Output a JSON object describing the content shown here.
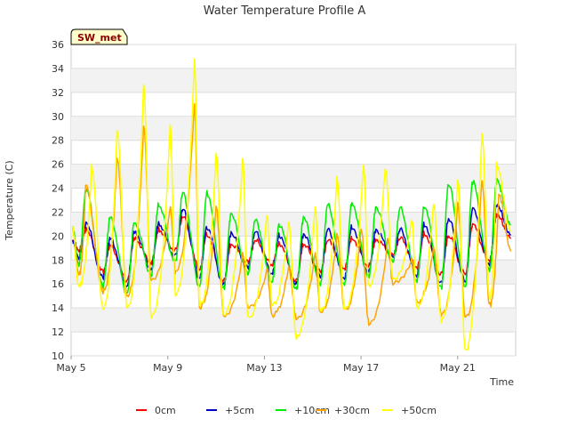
{
  "chart_data": {
    "type": "line",
    "title": "Water Temperature Profile A",
    "xlabel": "Time",
    "ylabel": "Temperature (C)",
    "site_label": "SW_met",
    "ylim": [
      10,
      36
    ],
    "yticks": [
      10,
      12,
      14,
      16,
      18,
      20,
      22,
      24,
      26,
      28,
      30,
      32,
      34,
      36
    ],
    "xlim_days": [
      5,
      23.4
    ],
    "xticks": [
      {
        "day": 5,
        "label": "May 5"
      },
      {
        "day": 9,
        "label": "May 9"
      },
      {
        "day": 13,
        "label": "May 13"
      },
      {
        "day": 17,
        "label": "May 17"
      },
      {
        "day": 21,
        "label": "May 21"
      }
    ],
    "grid": true,
    "legend_position": "bottom",
    "series": [
      {
        "name": "0cm",
        "color": "#ff0000",
        "min": [
          18.8,
          17.0,
          16.3,
          17.8,
          18.8,
          17.2,
          16.2,
          17.8,
          17.6,
          16.2,
          17.0,
          17.3,
          17.5,
          18.4,
          17.4,
          16.8,
          16.8,
          17.9
        ],
        "max": [
          20.5,
          19.2,
          19.8,
          20.5,
          21.6,
          20.2,
          19.3,
          19.6,
          19.4,
          19.3,
          19.6,
          19.8,
          19.7,
          19.8,
          20.2,
          20.0,
          20.9,
          21.8
        ]
      },
      {
        "name": "+5cm",
        "color": "#0000cc",
        "min": [
          18.2,
          16.5,
          15.8,
          17.3,
          18.3,
          16.5,
          15.9,
          17.3,
          16.9,
          15.9,
          16.6,
          16.5,
          17.0,
          18.2,
          16.7,
          16.0,
          16.2,
          17.6
        ],
        "max": [
          21.0,
          19.8,
          20.4,
          21.0,
          22.2,
          20.8,
          20.2,
          20.3,
          20.1,
          20.1,
          20.5,
          20.8,
          20.5,
          20.5,
          21.0,
          21.4,
          22.2,
          22.6
        ]
      },
      {
        "name": "+10cm",
        "color": "#00ee00",
        "min": [
          17.6,
          15.8,
          15.2,
          16.8,
          17.8,
          15.8,
          15.6,
          16.8,
          16.2,
          15.5,
          16.0,
          16.0,
          16.6,
          17.8,
          16.3,
          15.6,
          15.8,
          17.2
        ],
        "max": [
          23.9,
          21.6,
          21.2,
          22.6,
          23.6,
          23.6,
          21.8,
          21.3,
          21.0,
          21.5,
          22.6,
          22.8,
          22.4,
          22.3,
          22.5,
          24.3,
          24.5,
          24.6
        ]
      },
      {
        "name": "+30cm",
        "color": "#ffa500",
        "min": [
          16.8,
          15.4,
          15.0,
          16.2,
          17.0,
          14.0,
          13.4,
          14.0,
          13.4,
          13.2,
          13.6,
          13.8,
          12.8,
          16.0,
          14.5,
          13.5,
          13.2,
          14.2
        ],
        "max": [
          24.4,
          26.5,
          29.2,
          22.4,
          31.0,
          22.5,
          18.5,
          17.2,
          17.4,
          18.5,
          20.2,
          20.6,
          19.8,
          18.0,
          19.0,
          22.6,
          24.6,
          23.5
        ],
        "max_day": [
          5.6,
          6.9,
          8.0,
          9.1,
          10.1,
          11.0,
          12.1,
          13.1,
          14.0,
          15.1,
          16.0,
          17.0,
          18.1,
          19.1,
          20.0,
          21.0,
          22.0,
          22.7
        ]
      },
      {
        "name": "+50cm",
        "color": "#ffff00",
        "min": [
          15.8,
          14.0,
          14.0,
          13.2,
          15.2,
          14.2,
          13.5,
          13.2,
          14.2,
          11.5,
          13.7,
          13.8,
          15.8,
          16.5,
          14.0,
          13.0,
          10.5,
          14.8
        ],
        "max": [
          25.8,
          28.8,
          32.6,
          29.2,
          34.8,
          26.9,
          26.6,
          21.8,
          21.2,
          22.5,
          24.8,
          26.0,
          25.8,
          21.5,
          22.8,
          24.9,
          28.6,
          26.0
        ],
        "max_day": [
          5.85,
          6.9,
          8.0,
          9.1,
          10.1,
          11.0,
          12.1,
          13.1,
          14.0,
          15.1,
          16.0,
          17.1,
          18.0,
          19.1,
          20.0,
          21.0,
          22.0,
          22.6
        ]
      }
    ]
  }
}
